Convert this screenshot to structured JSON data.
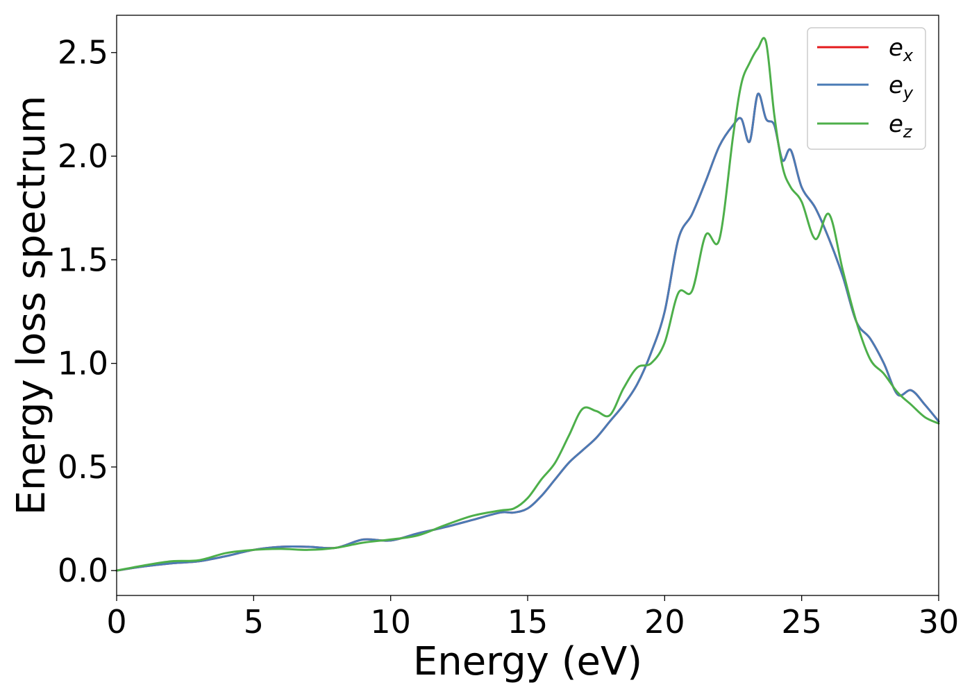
{
  "chart_data": {
    "type": "line",
    "title": "",
    "xlabel": "Energy (eV)",
    "ylabel": "Energy loss spectrum",
    "xlim": [
      0,
      30
    ],
    "ylim": [
      -0.12,
      2.68
    ],
    "xticks": [
      0,
      5,
      10,
      15,
      20,
      25,
      30
    ],
    "xtick_labels": [
      "0",
      "5",
      "10",
      "15",
      "20",
      "25",
      "30"
    ],
    "yticks": [
      0.0,
      0.5,
      1.0,
      1.5,
      2.0,
      2.5
    ],
    "ytick_labels": [
      "0.0",
      "0.5",
      "1.0",
      "1.5",
      "2.0",
      "2.5"
    ],
    "grid": false,
    "legend_position": "top-right",
    "series": [
      {
        "name": "e_x",
        "legend_base": "e",
        "legend_sub": "x",
        "color": "#e41a1c",
        "x": [
          0,
          1,
          2,
          3,
          4,
          5,
          6,
          7,
          8,
          9,
          10,
          11,
          12,
          13,
          14,
          14.5,
          15,
          15.5,
          16,
          16.5,
          17,
          17.5,
          18,
          18.5,
          19,
          19.5,
          20,
          20.5,
          21,
          21.5,
          22,
          22.5,
          22.8,
          23.1,
          23.4,
          23.7,
          24,
          24.3,
          24.6,
          25,
          25.5,
          26,
          26.5,
          27,
          27.5,
          28,
          28.5,
          29,
          29.5,
          30
        ],
        "y": [
          0.0,
          0.02,
          0.035,
          0.045,
          0.07,
          0.1,
          0.115,
          0.115,
          0.11,
          0.15,
          0.145,
          0.18,
          0.21,
          0.245,
          0.28,
          0.28,
          0.3,
          0.36,
          0.44,
          0.52,
          0.58,
          0.64,
          0.72,
          0.8,
          0.9,
          1.05,
          1.25,
          1.6,
          1.72,
          1.88,
          2.05,
          2.15,
          2.18,
          2.07,
          2.3,
          2.18,
          2.15,
          1.98,
          2.03,
          1.85,
          1.75,
          1.6,
          1.42,
          1.2,
          1.12,
          1.0,
          0.85,
          0.87,
          0.8,
          0.72
        ]
      },
      {
        "name": "e_y",
        "legend_base": "e",
        "legend_sub": "y",
        "color": "#4a7bb5",
        "x": [
          0,
          1,
          2,
          3,
          4,
          5,
          6,
          7,
          8,
          9,
          10,
          11,
          12,
          13,
          14,
          14.5,
          15,
          15.5,
          16,
          16.5,
          17,
          17.5,
          18,
          18.5,
          19,
          19.5,
          20,
          20.5,
          21,
          21.5,
          22,
          22.5,
          22.8,
          23.1,
          23.4,
          23.7,
          24,
          24.3,
          24.6,
          25,
          25.5,
          26,
          26.5,
          27,
          27.5,
          28,
          28.5,
          29,
          29.5,
          30
        ],
        "y": [
          0.0,
          0.02,
          0.035,
          0.045,
          0.07,
          0.1,
          0.115,
          0.115,
          0.11,
          0.15,
          0.145,
          0.18,
          0.21,
          0.245,
          0.28,
          0.28,
          0.3,
          0.36,
          0.44,
          0.52,
          0.58,
          0.64,
          0.72,
          0.8,
          0.9,
          1.05,
          1.25,
          1.6,
          1.72,
          1.88,
          2.05,
          2.15,
          2.18,
          2.07,
          2.3,
          2.18,
          2.15,
          1.98,
          2.03,
          1.85,
          1.75,
          1.6,
          1.42,
          1.2,
          1.12,
          1.0,
          0.85,
          0.87,
          0.8,
          0.72
        ]
      },
      {
        "name": "e_z",
        "legend_base": "e",
        "legend_sub": "z",
        "color": "#4daf4a",
        "x": [
          0,
          1,
          2,
          3,
          4,
          5,
          6,
          7,
          8,
          9,
          10,
          11,
          12,
          13,
          14,
          14.5,
          15,
          15.5,
          16,
          16.5,
          17,
          17.5,
          18,
          18.5,
          19,
          19.5,
          20,
          20.5,
          21,
          21.5,
          22,
          22.5,
          22.8,
          23.1,
          23.4,
          23.7,
          24,
          24.3,
          24.6,
          25,
          25.5,
          26,
          26.5,
          27,
          27.5,
          28,
          28.5,
          29,
          29.5,
          30
        ],
        "y": [
          0.0,
          0.025,
          0.045,
          0.05,
          0.085,
          0.1,
          0.105,
          0.1,
          0.11,
          0.135,
          0.15,
          0.17,
          0.22,
          0.265,
          0.29,
          0.3,
          0.35,
          0.44,
          0.52,
          0.65,
          0.78,
          0.77,
          0.75,
          0.88,
          0.98,
          1.0,
          1.1,
          1.34,
          1.35,
          1.62,
          1.6,
          2.1,
          2.35,
          2.45,
          2.52,
          2.55,
          2.2,
          1.95,
          1.85,
          1.78,
          1.6,
          1.72,
          1.45,
          1.2,
          1.02,
          0.95,
          0.86,
          0.8,
          0.74,
          0.71
        ]
      }
    ]
  }
}
